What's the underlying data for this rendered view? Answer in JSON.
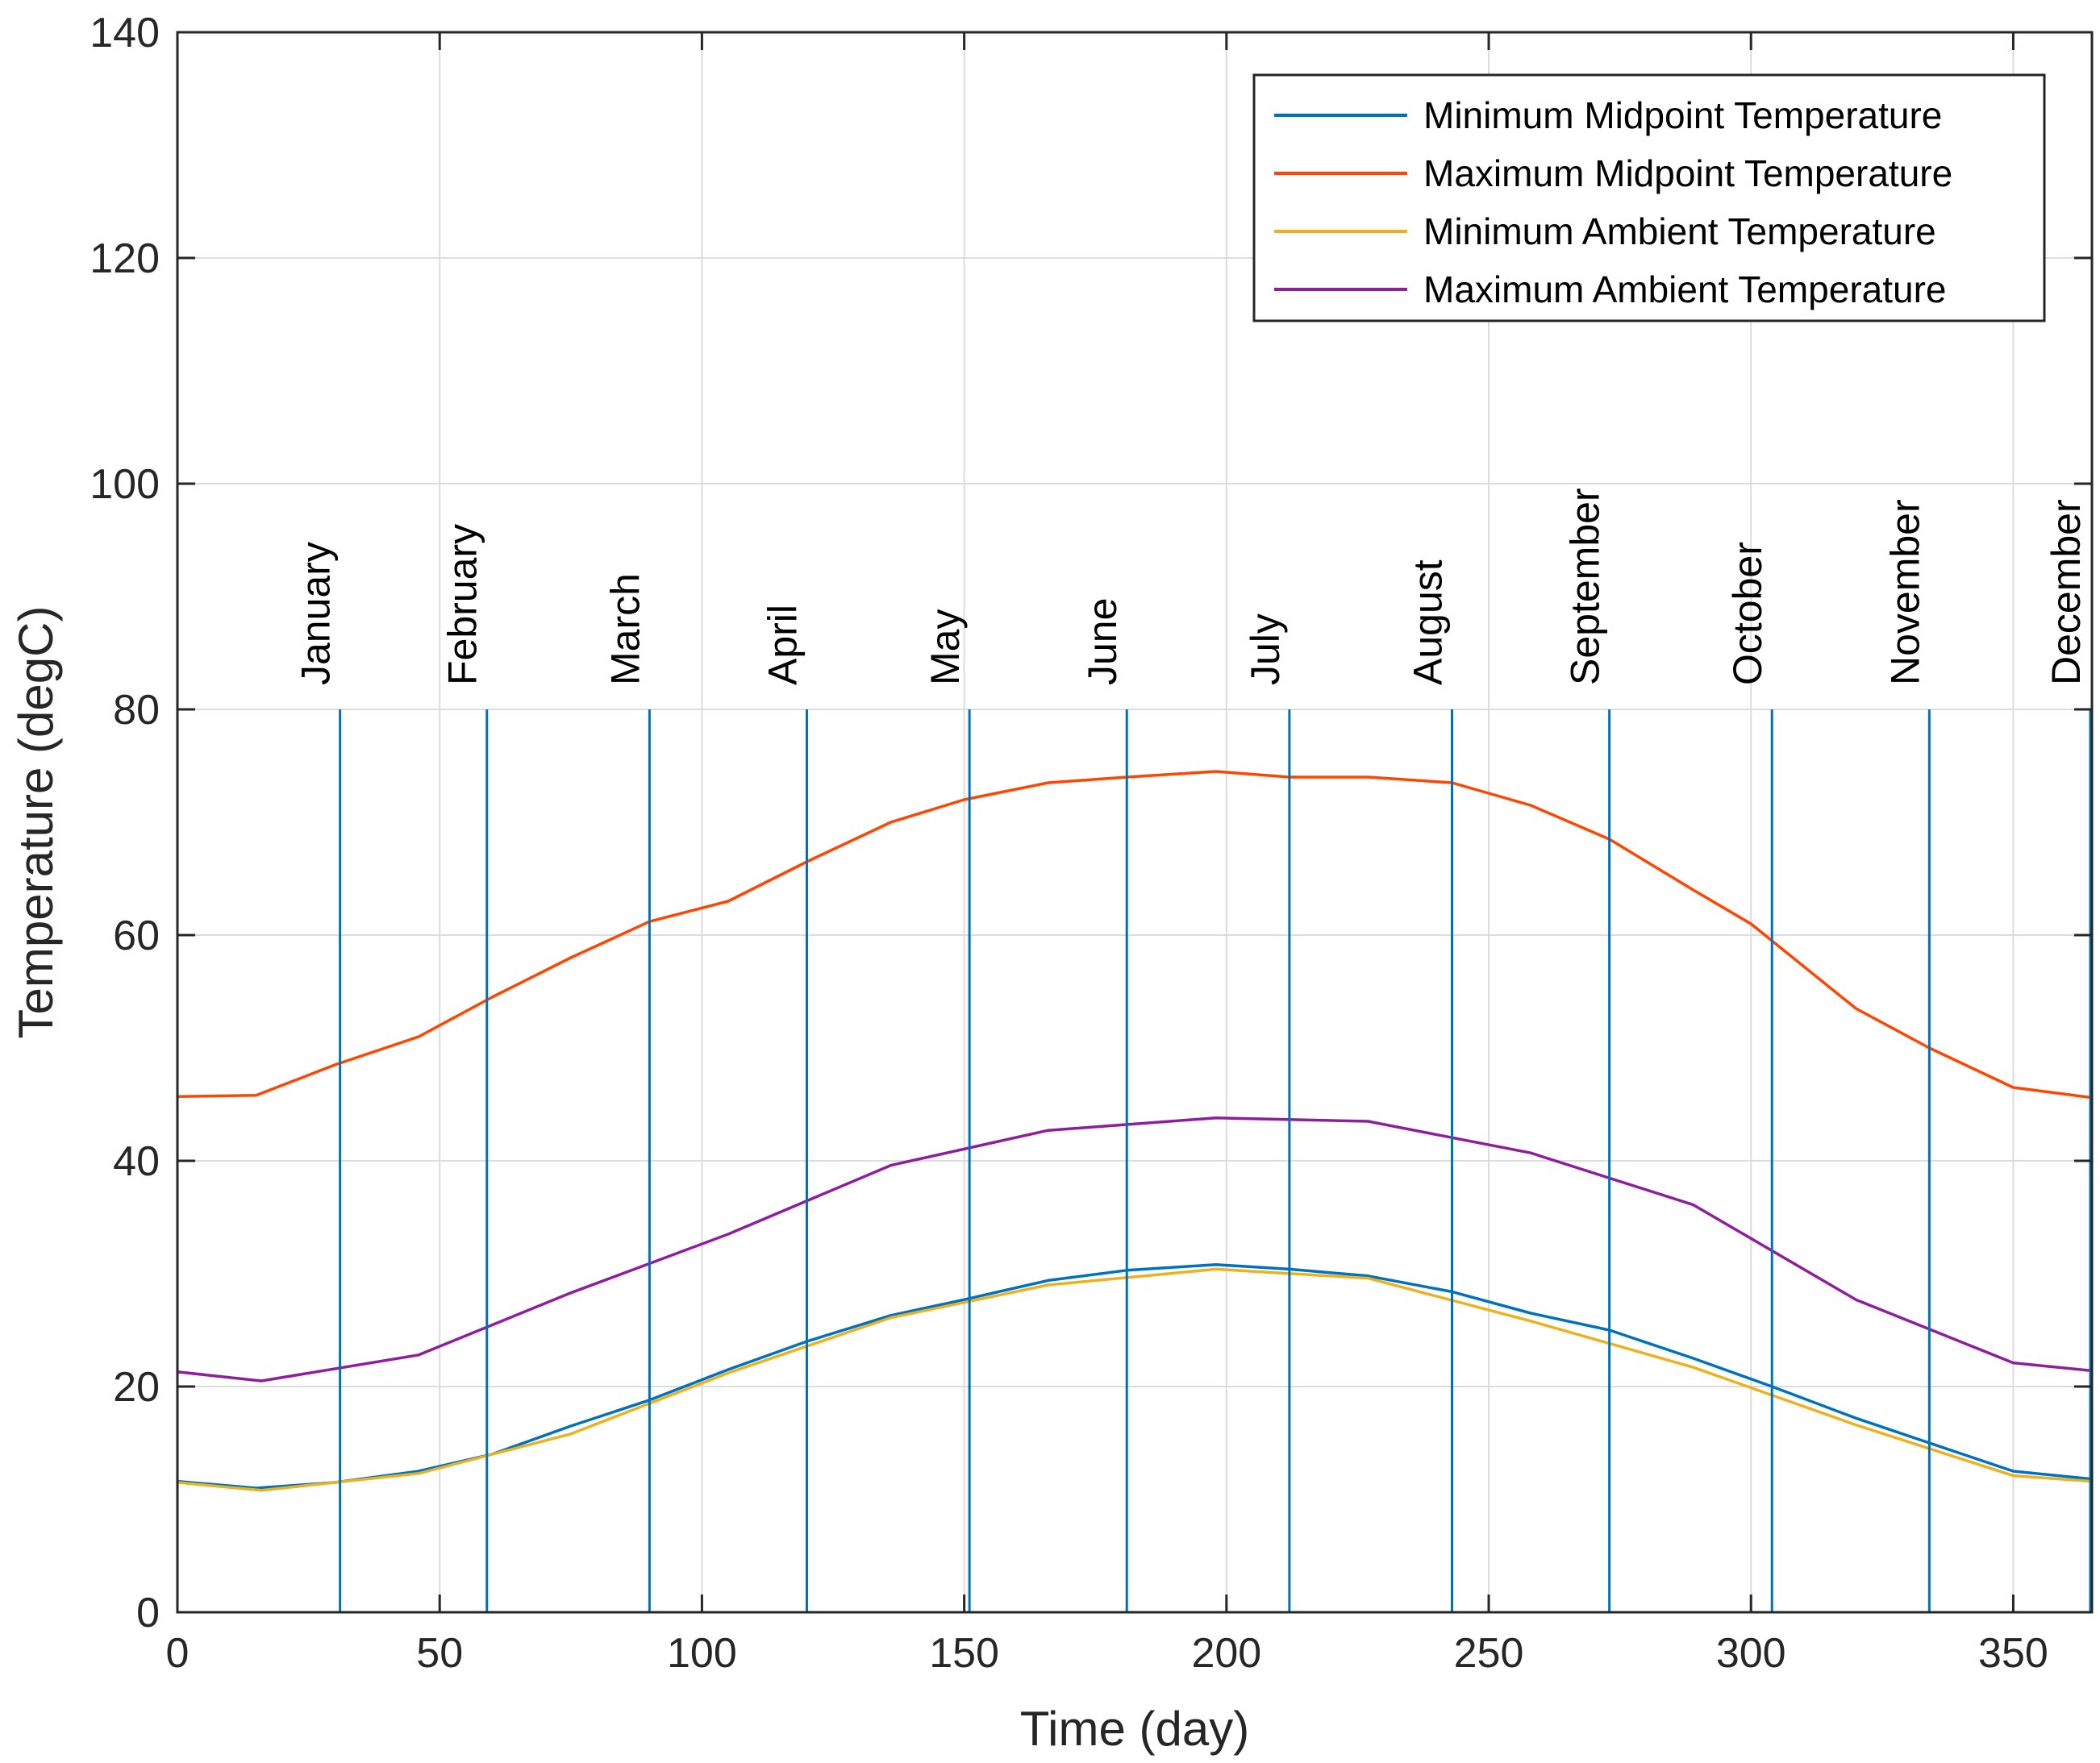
{
  "chart_data": {
    "type": "line",
    "title": "",
    "xlabel": "Time (day)",
    "ylabel": "Temperature (degC)",
    "xlim": [
      0,
      365
    ],
    "ylim": [
      0,
      140
    ],
    "xticks": [
      0,
      50,
      100,
      150,
      200,
      250,
      300,
      350
    ],
    "yticks": [
      0,
      20,
      40,
      60,
      80,
      100,
      120,
      140
    ],
    "grid": true,
    "legend_position": "top-right",
    "colors": {
      "min_midpoint": "#0072BD",
      "max_midpoint": "#FF4500",
      "min_ambient": "#EDB120",
      "max_ambient": "#8E1E9E",
      "month_marker": "#0072BD"
    },
    "series": [
      {
        "name": "Minimum Midpoint Temperature",
        "x": [
          0,
          15,
          30,
          46,
          60,
          75,
          90,
          105,
          120,
          136,
          150,
          166,
          181,
          198,
          212,
          227,
          243,
          258,
          273,
          289,
          304,
          320,
          334,
          350,
          365
        ],
        "values": [
          11.6,
          11.0,
          11.5,
          12.5,
          14.0,
          16.5,
          18.8,
          21.5,
          24.0,
          26.3,
          27.7,
          29.4,
          30.3,
          30.8,
          30.4,
          29.8,
          28.4,
          26.5,
          25.0,
          22.5,
          20.0,
          17.2,
          15.0,
          12.5,
          11.8
        ]
      },
      {
        "name": "Maximum Midpoint Temperature",
        "x": [
          0,
          15,
          30,
          46,
          60,
          75,
          90,
          105,
          120,
          136,
          150,
          166,
          181,
          198,
          212,
          227,
          243,
          258,
          273,
          289,
          300,
          304,
          320,
          334,
          350,
          365
        ],
        "values": [
          45.7,
          45.8,
          48.5,
          51.0,
          54.5,
          58.0,
          61.2,
          63.0,
          66.5,
          70.0,
          72.0,
          73.5,
          74.0,
          74.5,
          74.0,
          74.0,
          73.5,
          71.5,
          68.5,
          64.0,
          61.0,
          59.5,
          53.5,
          50.0,
          46.5,
          45.6
        ]
      },
      {
        "name": "Minimum Ambient Temperature",
        "x": [
          0,
          16,
          46,
          75,
          105,
          136,
          166,
          198,
          227,
          258,
          289,
          320,
          350,
          365
        ],
        "values": [
          11.5,
          10.8,
          12.3,
          15.8,
          21.2,
          26.1,
          29.0,
          30.4,
          29.6,
          25.8,
          21.7,
          16.6,
          12.1,
          11.6
        ]
      },
      {
        "name": "Maximum Ambient Temperature",
        "x": [
          0,
          16,
          46,
          75,
          105,
          136,
          166,
          198,
          227,
          258,
          289,
          320,
          350,
          365
        ],
        "values": [
          21.3,
          20.5,
          22.8,
          28.3,
          33.5,
          39.6,
          42.7,
          43.8,
          43.5,
          40.7,
          36.1,
          27.7,
          22.1,
          21.4
        ]
      }
    ],
    "month_markers": [
      {
        "label": "January",
        "day": 31
      },
      {
        "label": "February",
        "day": 59
      },
      {
        "label": "March",
        "day": 90
      },
      {
        "label": "April",
        "day": 120
      },
      {
        "label": "May",
        "day": 151
      },
      {
        "label": "June",
        "day": 181
      },
      {
        "label": "July",
        "day": 212
      },
      {
        "label": "August",
        "day": 243
      },
      {
        "label": "September",
        "day": 273
      },
      {
        "label": "October",
        "day": 304
      },
      {
        "label": "November",
        "day": 334
      },
      {
        "label": "December",
        "day": 365
      }
    ],
    "month_marker_range": [
      0,
      80
    ]
  }
}
